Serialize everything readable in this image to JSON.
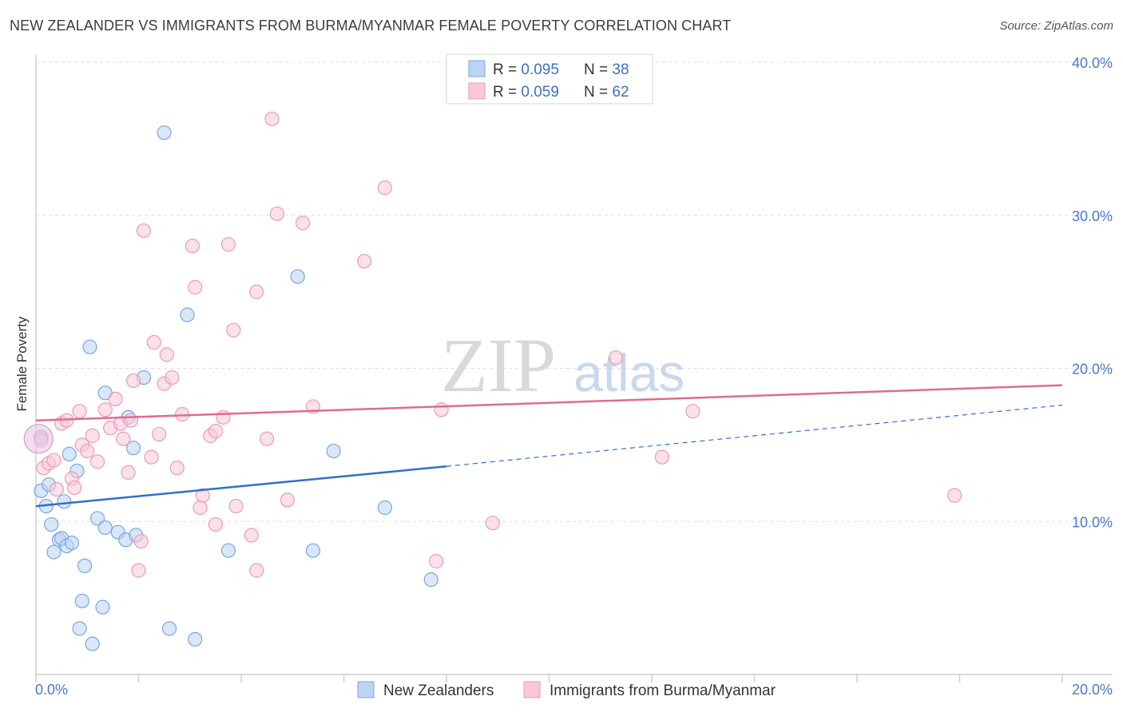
{
  "title": "NEW ZEALANDER VS IMMIGRANTS FROM BURMA/MYANMAR FEMALE POVERTY CORRELATION CHART",
  "source": "Source: ZipAtlas.com",
  "watermark": {
    "zip": "ZIP",
    "atlas": "atlas"
  },
  "legend_top": {
    "r_label": "R = ",
    "n_label": "N = ",
    "rows": [
      {
        "series": "New Zealanders",
        "r": "0.095",
        "n": "38"
      },
      {
        "series": "Immigrants from Burma/Myanmar",
        "r": "0.059",
        "n": "62"
      }
    ]
  },
  "chart_data": {
    "type": "scatter",
    "title": "NEW ZEALANDER VS IMMIGRANTS FROM BURMA/MYANMAR FEMALE POVERTY CORRELATION CHART",
    "xlabel": "",
    "ylabel": "Female Poverty",
    "xlim": [
      0,
      20
    ],
    "ylim": [
      0,
      40
    ],
    "x_tick_labels": [
      "0.0%",
      "20.0%"
    ],
    "y_ticks": [
      10,
      20,
      30,
      40
    ],
    "y_tick_labels": [
      "10.0%",
      "20.0%",
      "30.0%",
      "40.0%"
    ],
    "grid": true,
    "legend": "bottom-center",
    "series": [
      {
        "name": "New Zealanders",
        "color": "#7aa6e0",
        "fill": "#bcd4f3",
        "line_color": "#2f6fd0",
        "r": 0.095,
        "n": 38,
        "trend": {
          "x0": 0,
          "y0": 11.0,
          "x1": 8.0,
          "y1": 13.6,
          "dashed_to_x": 20,
          "dashed_to_y": 17.6
        },
        "points": [
          [
            0.1,
            15.5
          ],
          [
            0.1,
            12.0
          ],
          [
            0.2,
            11.0
          ],
          [
            0.25,
            12.4
          ],
          [
            0.3,
            9.8
          ],
          [
            0.35,
            8.0
          ],
          [
            0.45,
            8.8
          ],
          [
            0.5,
            8.9
          ],
          [
            0.55,
            11.3
          ],
          [
            0.6,
            8.4
          ],
          [
            0.65,
            14.4
          ],
          [
            0.7,
            8.6
          ],
          [
            0.8,
            13.3
          ],
          [
            0.85,
            3.0
          ],
          [
            0.9,
            4.8
          ],
          [
            0.95,
            7.1
          ],
          [
            1.05,
            21.4
          ],
          [
            1.1,
            2.0
          ],
          [
            1.2,
            10.2
          ],
          [
            1.3,
            4.4
          ],
          [
            1.35,
            9.6
          ],
          [
            1.35,
            18.4
          ],
          [
            1.6,
            9.3
          ],
          [
            1.75,
            8.8
          ],
          [
            1.8,
            16.8
          ],
          [
            1.9,
            14.8
          ],
          [
            1.95,
            9.1
          ],
          [
            2.1,
            19.4
          ],
          [
            2.5,
            35.4
          ],
          [
            2.6,
            3.0
          ],
          [
            2.95,
            23.5
          ],
          [
            3.1,
            2.3
          ],
          [
            3.75,
            8.1
          ],
          [
            5.1,
            26.0
          ],
          [
            5.4,
            8.1
          ],
          [
            5.8,
            14.6
          ],
          [
            6.8,
            10.9
          ],
          [
            7.7,
            6.2
          ]
        ]
      },
      {
        "name": "Immigrants from Burma/Myanmar",
        "color": "#ee9ab5",
        "fill": "#f8c8d7",
        "line_color": "#e06a93",
        "r": 0.059,
        "n": 62,
        "trend": {
          "x0": 0,
          "y0": 16.6,
          "x1": 20,
          "y1": 18.9
        },
        "points": [
          [
            0.1,
            15.3
          ],
          [
            0.15,
            13.5
          ],
          [
            0.25,
            13.8
          ],
          [
            0.35,
            14.0
          ],
          [
            0.4,
            12.1
          ],
          [
            0.5,
            16.4
          ],
          [
            0.6,
            16.6
          ],
          [
            0.7,
            12.8
          ],
          [
            0.75,
            12.2
          ],
          [
            0.85,
            17.2
          ],
          [
            0.9,
            15.0
          ],
          [
            1.0,
            14.6
          ],
          [
            1.1,
            15.6
          ],
          [
            1.2,
            13.9
          ],
          [
            1.35,
            17.3
          ],
          [
            1.45,
            16.1
          ],
          [
            1.55,
            18.0
          ],
          [
            1.65,
            16.4
          ],
          [
            1.7,
            15.4
          ],
          [
            1.8,
            13.2
          ],
          [
            1.85,
            16.6
          ],
          [
            1.9,
            19.2
          ],
          [
            2.0,
            6.8
          ],
          [
            2.05,
            8.7
          ],
          [
            2.1,
            29.0
          ],
          [
            2.25,
            14.2
          ],
          [
            2.3,
            21.7
          ],
          [
            2.4,
            15.7
          ],
          [
            2.5,
            19.0
          ],
          [
            2.55,
            20.9
          ],
          [
            2.65,
            19.4
          ],
          [
            2.75,
            13.5
          ],
          [
            2.85,
            17.0
          ],
          [
            3.05,
            28.0
          ],
          [
            3.1,
            25.3
          ],
          [
            3.2,
            10.9
          ],
          [
            3.25,
            11.7
          ],
          [
            3.4,
            15.6
          ],
          [
            3.5,
            15.9
          ],
          [
            3.5,
            9.8
          ],
          [
            3.65,
            16.8
          ],
          [
            3.75,
            28.1
          ],
          [
            3.85,
            22.5
          ],
          [
            3.9,
            11.0
          ],
          [
            4.2,
            9.1
          ],
          [
            4.3,
            25.0
          ],
          [
            4.3,
            6.8
          ],
          [
            4.5,
            15.4
          ],
          [
            4.6,
            36.3
          ],
          [
            4.7,
            30.1
          ],
          [
            4.9,
            11.4
          ],
          [
            5.2,
            29.5
          ],
          [
            5.4,
            17.5
          ],
          [
            6.4,
            27.0
          ],
          [
            6.8,
            31.8
          ],
          [
            7.8,
            7.4
          ],
          [
            7.9,
            17.3
          ],
          [
            8.9,
            9.9
          ],
          [
            11.3,
            20.7
          ],
          [
            12.2,
            14.2
          ],
          [
            12.8,
            17.2
          ],
          [
            17.9,
            11.7
          ]
        ]
      }
    ]
  }
}
